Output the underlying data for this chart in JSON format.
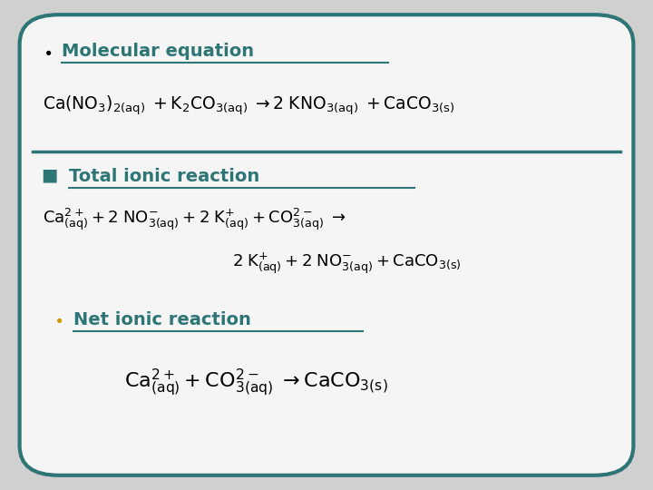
{
  "bg_color": "#d0d0d0",
  "box_color": "#f5f5f5",
  "box_edge_color": "#2e7575",
  "text_color": "#000000",
  "teal_color": "#2e7575",
  "gold_color": "#cc9900",
  "figsize": [
    7.2,
    5.4
  ],
  "dpi": 100,
  "mol_eq_formula": "$\\mathrm{Ca(NO_3)_{2(aq)}\\; +K_2CO_{3(aq)}\\; \\rightarrow 2\\; KNO_{3(aq)}\\; +CaCO_{3(s)}}$",
  "total_ionic_line1": "$\\mathrm{Ca^{2+}_{(aq)}+2\\;NO^{-}_{3(aq)}+2\\;K^{+}_{(aq)}+CO^{2-}_{3(aq)}\\;\\rightarrow}$",
  "total_ionic_line2": "$\\mathrm{2\\;K^{+}_{(aq)}+2\\;NO^{-}_{3(aq)}+CaCO_{3(s)}}$",
  "net_ionic_formula": "$\\mathrm{Ca^{2+}_{(aq)}+CO^{2-}_{3(aq)}\\;\\rightarrow CaCO_{3(s)}}$",
  "section1_label": "Molecular equation",
  "section2_label": "Total ionic reaction",
  "section3_label": "Net ionic reaction"
}
